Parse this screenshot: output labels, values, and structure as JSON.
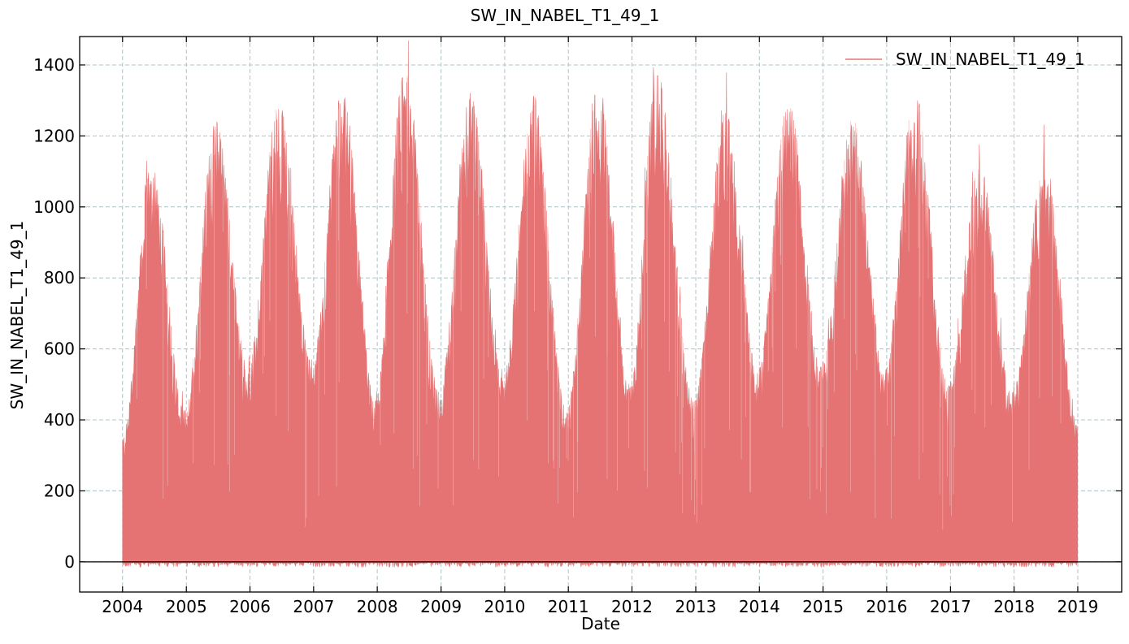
{
  "chart_data": {
    "type": "line",
    "title": "SW_IN_NABEL_T1_49_1",
    "xlabel": "Date",
    "ylabel": "SW_IN_NABEL_T1_49_1",
    "x_range": [
      "2003-04-30",
      "2019-09-10"
    ],
    "ylim": [
      -85,
      1480
    ],
    "x_ticks": [
      "2004",
      "2005",
      "2006",
      "2007",
      "2008",
      "2009",
      "2010",
      "2011",
      "2012",
      "2013",
      "2014",
      "2015",
      "2016",
      "2017",
      "2018",
      "2019"
    ],
    "y_ticks": [
      0,
      200,
      400,
      600,
      800,
      1000,
      1200,
      1400
    ],
    "grid": true,
    "zero_line": true,
    "legend": {
      "placement": "top-right"
    },
    "series": [
      {
        "name": "SW_IN_NABEL_T1_49_1",
        "color": "#e57373",
        "data_start": "2004-01-01",
        "data_end": "2019-01-01",
        "min_value": -15,
        "annual_summer_peak": [
          {
            "year": 2004,
            "date": "2004-06-15",
            "peak": 1150
          },
          {
            "year": 2005,
            "date": "2005-06-20",
            "peak": 1250
          },
          {
            "year": 2006,
            "date": "2006-06-10",
            "peak": 1305
          },
          {
            "year": 2007,
            "date": "2007-06-15",
            "peak": 1335
          },
          {
            "year": 2008,
            "date": "2008-06-05",
            "peak": 1410
          },
          {
            "year": 2009,
            "date": "2009-06-20",
            "peak": 1325
          },
          {
            "year": 2010,
            "date": "2010-06-15",
            "peak": 1315
          },
          {
            "year": 2011,
            "date": "2011-06-20",
            "peak": 1360
          },
          {
            "year": 2012,
            "date": "2012-05-20",
            "peak": 1390
          },
          {
            "year": 2013,
            "date": "2013-06-20",
            "peak": 1275
          },
          {
            "year": 2014,
            "date": "2014-06-15",
            "peak": 1315
          },
          {
            "year": 2015,
            "date": "2015-06-20",
            "peak": 1275
          },
          {
            "year": 2016,
            "date": "2016-06-10",
            "peak": 1345
          },
          {
            "year": 2017,
            "date": "2017-06-15",
            "peak": 1130
          },
          {
            "year": 2018,
            "date": "2018-06-25",
            "peak": 1135
          }
        ],
        "annual_winter_peak": [
          {
            "date": "2004-01-01",
            "peak": 360
          },
          {
            "date": "2004-12-20",
            "peak": 430
          },
          {
            "date": "2005-12-20",
            "peak": 550
          },
          {
            "date": "2006-12-20",
            "peak": 570
          },
          {
            "date": "2007-12-20",
            "peak": 460
          },
          {
            "date": "2008-12-20",
            "peak": 480
          },
          {
            "date": "2009-12-20",
            "peak": 520
          },
          {
            "date": "2010-12-20",
            "peak": 430
          },
          {
            "date": "2011-12-20",
            "peak": 500
          },
          {
            "date": "2012-12-20",
            "peak": 460
          },
          {
            "date": "2013-12-20",
            "peak": 540
          },
          {
            "date": "2014-12-20",
            "peak": 560
          },
          {
            "date": "2015-12-20",
            "peak": 540
          },
          {
            "date": "2016-12-20",
            "peak": 500
          },
          {
            "date": "2017-12-20",
            "peak": 480
          },
          {
            "date": "2019-01-01",
            "peak": 390
          }
        ]
      }
    ]
  }
}
